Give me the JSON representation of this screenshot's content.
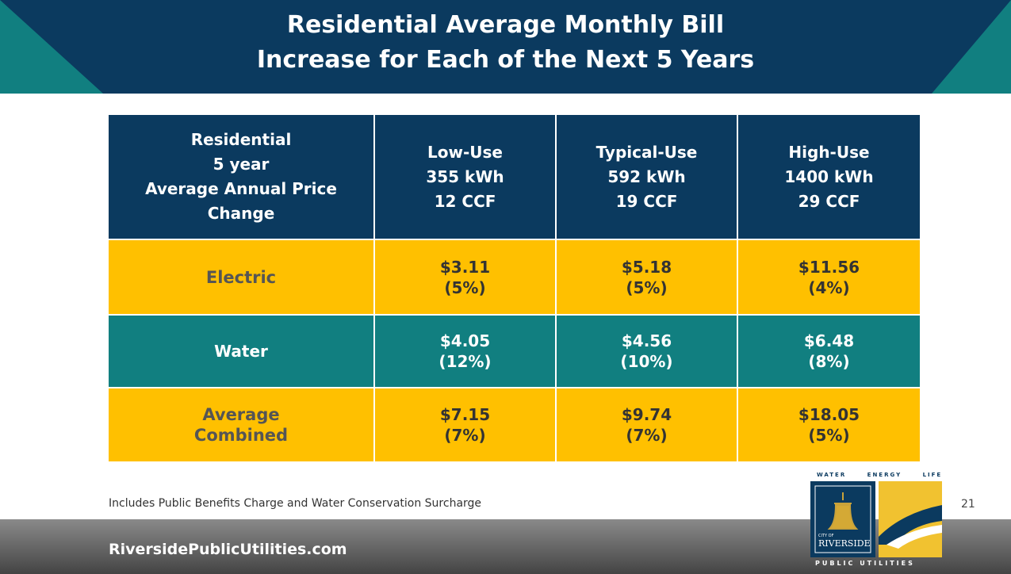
{
  "header": {
    "title": [
      "Residential Average Monthly Bill",
      "Increase for Each of the Next 5 Years"
    ]
  },
  "table": {
    "header": [
      [
        "Residential",
        "5 year",
        "Average Annual Price",
        "Change"
      ],
      [
        "Low-Use",
        "355 kWh",
        "12 CCF"
      ],
      [
        "Typical-Use",
        "592 kWh",
        "19 CCF"
      ],
      [
        "High-Use",
        "1400 kWh",
        "29 CCF"
      ]
    ],
    "rows": [
      [
        [
          "Electric"
        ],
        [
          "$3.11",
          "(5%)"
        ],
        [
          "$5.18",
          "(5%)"
        ],
        [
          "$11.56",
          "(4%)"
        ]
      ],
      [
        [
          "Water"
        ],
        [
          "$4.05",
          "(12%)"
        ],
        [
          "$4.56",
          "(10%)"
        ],
        [
          "$6.48",
          "(8%)"
        ]
      ],
      [
        [
          "Average",
          "Combined"
        ],
        [
          "$7.15",
          "(7%)"
        ],
        [
          "$9.74",
          "(7%)"
        ],
        [
          "$18.05",
          "(5%)"
        ]
      ]
    ]
  },
  "footnote": "Includes Public Benefits Charge and Water Conservation Surcharge",
  "page_number": "21",
  "footer": {
    "url": "RiversidePublicUtilities.com"
  },
  "logo": {
    "tagline": "WATER ENERGY LIFE",
    "city_of": "CITY OF",
    "city": "RIVERSIDE",
    "name": "PUBLIC UTILITIES"
  }
}
